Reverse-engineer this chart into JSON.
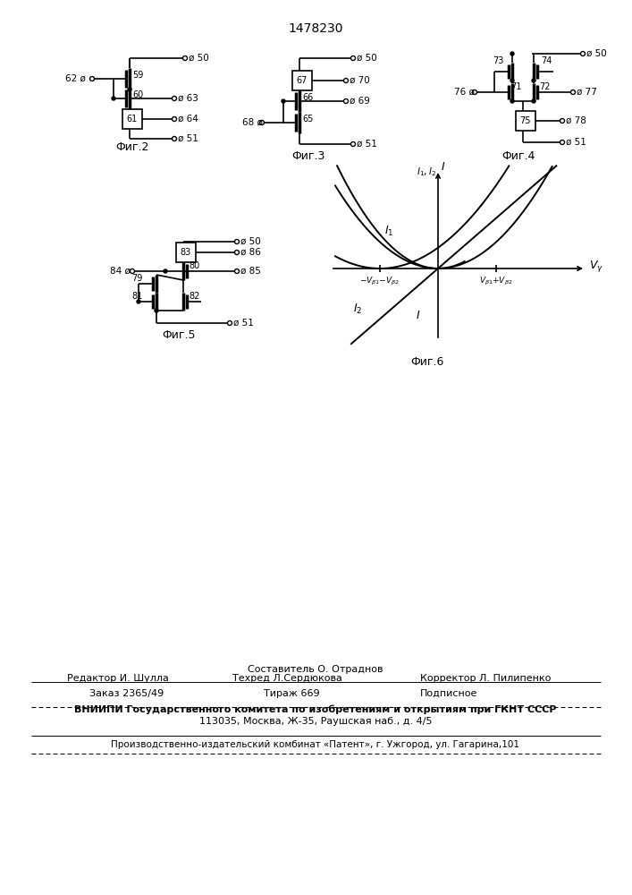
{
  "title": "1478230",
  "background": "#ffffff",
  "fig2_label": "Фиг.2",
  "fig3_label": "Фиг.3",
  "fig4_label": "Фиг.4",
  "fig5_label": "Фиг.5",
  "fig6_label": "Фиг.6",
  "bottom_line1": "Составитель О. Отраднов",
  "bottom_line2a": "Редактор И. Шулла",
  "bottom_line2b": "Техред Л.Сердюкова",
  "bottom_line2c": "Корректор Л. Пилипенко",
  "bottom_line3a": "Заказ 2365/49",
  "bottom_line3b": "Тираж 669",
  "bottom_line3c": "Подписное",
  "bottom_line4": "ВНИИПИ Государственного комитета по изобретениям и открытиям при ГКНТ СССР",
  "bottom_line5": "113035, Москва, Ж-35, Раушская наб., д. 4/5",
  "bottom_line6": "Производственно-издательский комбинат «Патент», г. Ужгород, ул. Гагарина,101"
}
